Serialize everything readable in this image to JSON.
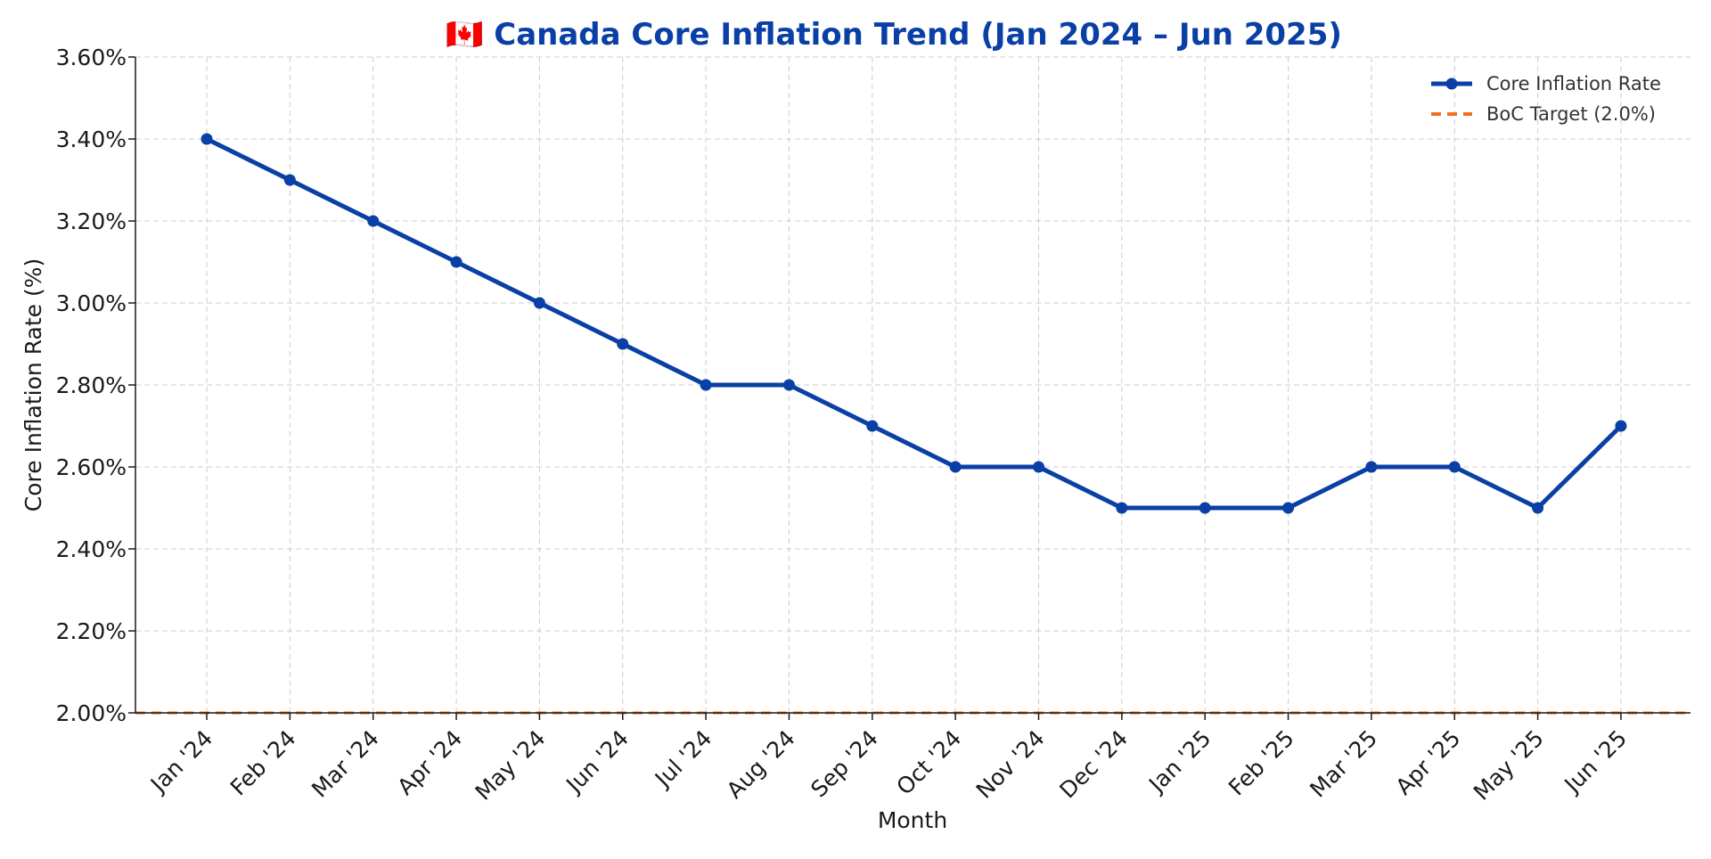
{
  "chart_data": {
    "type": "line",
    "title": "🇨🇦 Canada Core Inflation Trend (Jan 2024 – Jun 2025)",
    "xlabel": "Month",
    "ylabel": "Core Inflation Rate (%)",
    "categories": [
      "Jan '24",
      "Feb '24",
      "Mar '24",
      "Apr '24",
      "May '24",
      "Jun '24",
      "Jul '24",
      "Aug '24",
      "Sep '24",
      "Oct '24",
      "Nov '24",
      "Dec '24",
      "Jan '25",
      "Feb '25",
      "Mar '25",
      "Apr '25",
      "May '25",
      "Jun '25"
    ],
    "ylim": [
      2.0,
      3.6
    ],
    "yticks": [
      2.0,
      2.2,
      2.4,
      2.6,
      2.8,
      3.0,
      3.2,
      3.4,
      3.6
    ],
    "ytick_labels": [
      "2.00%",
      "2.20%",
      "2.40%",
      "2.60%",
      "2.80%",
      "3.00%",
      "3.20%",
      "3.40%",
      "3.60%"
    ],
    "grid": true,
    "legend_position": "top-right",
    "series": [
      {
        "name": "Core Inflation Rate",
        "values": [
          3.4,
          3.3,
          3.2,
          3.1,
          3.0,
          2.9,
          2.8,
          2.8,
          2.7,
          2.6,
          2.6,
          2.5,
          2.5,
          2.5,
          2.6,
          2.6,
          2.5,
          2.7
        ],
        "color": "#0a3fa5",
        "style": "solid",
        "marker": "circle"
      }
    ],
    "reference_lines": [
      {
        "name": "BoC Target (2.0%)",
        "value": 2.0,
        "color": "#f07020",
        "style": "dashed"
      }
    ],
    "colors": {
      "title": "#0a3fa5",
      "axis": "#1a1a1a",
      "grid": "#cccccc"
    }
  }
}
